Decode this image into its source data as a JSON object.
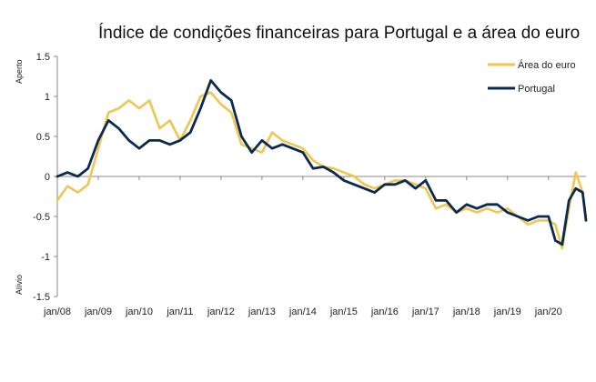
{
  "chart_data": {
    "type": "line",
    "title": "Índice de condições financeiras para Portugal e a área do euro",
    "ylabel_top": "Aperto",
    "ylabel_bottom": "Alívio",
    "ylim": [
      -1.5,
      1.5
    ],
    "yticks": [
      "1.5",
      "1",
      "0.5",
      "0",
      "-0.5",
      "-1",
      "-1.5"
    ],
    "xlim": [
      "2008-01",
      "2020-12"
    ],
    "xticks": [
      "jan/08",
      "jan/09",
      "jan/10",
      "jan/11",
      "jan/12",
      "jan/13",
      "jan/14",
      "jan/15",
      "jan/16",
      "jan/17",
      "jan/18",
      "jan/19",
      "jan/20"
    ],
    "grid": false,
    "legend_position": "top-right",
    "x": [
      "2008-01",
      "2008-04",
      "2008-07",
      "2008-10",
      "2009-01",
      "2009-04",
      "2009-07",
      "2009-10",
      "2010-01",
      "2010-04",
      "2010-07",
      "2010-10",
      "2011-01",
      "2011-04",
      "2011-07",
      "2011-10",
      "2012-01",
      "2012-04",
      "2012-07",
      "2012-10",
      "2013-01",
      "2013-04",
      "2013-07",
      "2013-10",
      "2014-01",
      "2014-04",
      "2014-07",
      "2014-10",
      "2015-01",
      "2015-04",
      "2015-07",
      "2015-10",
      "2016-01",
      "2016-04",
      "2016-07",
      "2016-10",
      "2017-01",
      "2017-04",
      "2017-07",
      "2017-10",
      "2018-01",
      "2018-04",
      "2018-07",
      "2018-10",
      "2019-01",
      "2019-04",
      "2019-07",
      "2019-10",
      "2020-01",
      "2020-03",
      "2020-05",
      "2020-07",
      "2020-09",
      "2020-11",
      "2020-12"
    ],
    "series": [
      {
        "name": "Área do euro",
        "color": "#f0c550",
        "values": [
          -0.3,
          -0.12,
          -0.2,
          -0.1,
          0.35,
          0.8,
          0.85,
          0.95,
          0.85,
          0.95,
          0.6,
          0.7,
          0.45,
          0.7,
          1.0,
          1.05,
          0.9,
          0.8,
          0.4,
          0.35,
          0.3,
          0.55,
          0.45,
          0.4,
          0.35,
          0.2,
          0.12,
          0.1,
          0.05,
          0.0,
          -0.1,
          -0.15,
          -0.1,
          -0.05,
          -0.05,
          -0.1,
          -0.15,
          -0.4,
          -0.35,
          -0.45,
          -0.4,
          -0.45,
          -0.4,
          -0.45,
          -0.4,
          -0.5,
          -0.6,
          -0.55,
          -0.55,
          -0.6,
          -0.9,
          -0.4,
          0.05,
          -0.2,
          -0.5
        ]
      },
      {
        "name": "Portugal",
        "color": "#0b2a50",
        "values": [
          0.0,
          0.05,
          0.0,
          0.1,
          0.45,
          0.7,
          0.6,
          0.45,
          0.35,
          0.45,
          0.45,
          0.4,
          0.45,
          0.55,
          0.85,
          1.2,
          1.05,
          0.95,
          0.5,
          0.3,
          0.45,
          0.35,
          0.4,
          0.35,
          0.3,
          0.1,
          0.12,
          0.05,
          -0.05,
          -0.1,
          -0.15,
          -0.2,
          -0.1,
          -0.1,
          -0.05,
          -0.15,
          -0.05,
          -0.3,
          -0.3,
          -0.45,
          -0.35,
          -0.4,
          -0.35,
          -0.35,
          -0.45,
          -0.5,
          -0.55,
          -0.5,
          -0.5,
          -0.8,
          -0.85,
          -0.3,
          -0.15,
          -0.2,
          -0.55
        ]
      }
    ]
  }
}
